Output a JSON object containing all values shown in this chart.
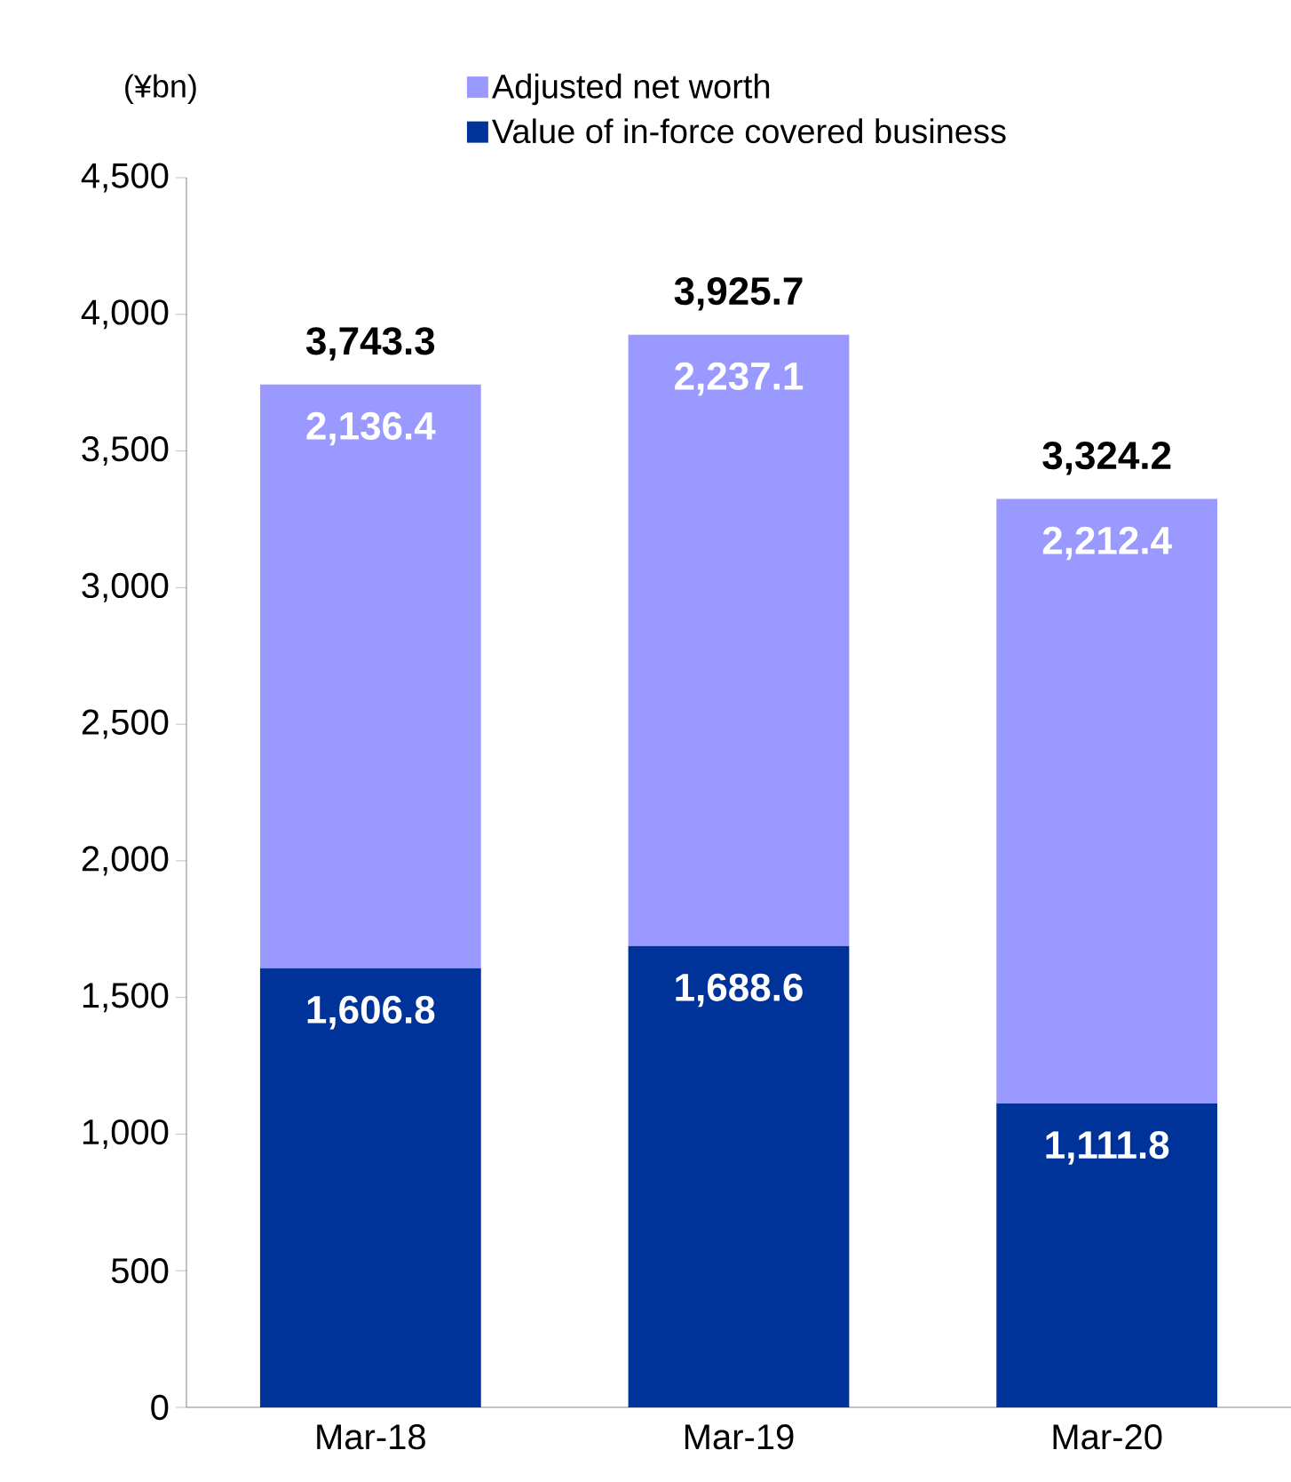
{
  "chart_data": {
    "type": "bar",
    "stacked": true,
    "ylabel": "(¥bn)",
    "categories": [
      "Mar-18",
      "Mar-19",
      "Mar-20"
    ],
    "series": [
      {
        "name": "Value of in-force covered business",
        "color": "#003399",
        "values": [
          1606.8,
          1688.6,
          1111.8
        ],
        "value_labels": [
          "1,606.8",
          "1,688.6",
          "1,111.8"
        ]
      },
      {
        "name": "Adjusted net worth",
        "color": "#9999ff",
        "values": [
          2136.4,
          2237.1,
          2212.4
        ],
        "value_labels": [
          "2,136.4",
          "2,237.1",
          "2,212.4"
        ]
      }
    ],
    "totals": [
      "3,743.3",
      "3,925.7",
      "3,324.2"
    ],
    "ylim": [
      0,
      4500
    ],
    "yticks": [
      0,
      500,
      {
        "value": 1000,
        "label": "1,000"
      },
      {
        "value": 1500,
        "label": "1,500"
      },
      {
        "value": 2000,
        "label": "2,000"
      },
      {
        "value": 2500,
        "label": "2,500"
      },
      {
        "value": 3000,
        "label": "3,000"
      },
      {
        "value": 3500,
        "label": "3,500"
      },
      {
        "value": 4000,
        "label": "4,000"
      },
      {
        "value": 4500,
        "label": "4,500"
      }
    ],
    "grid": false,
    "legend": "top"
  }
}
